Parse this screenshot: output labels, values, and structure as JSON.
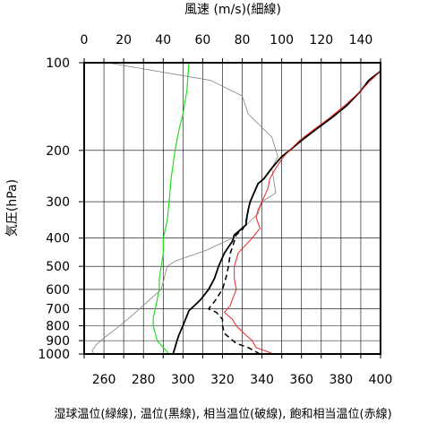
{
  "chart_data": {
    "type": "line",
    "title": "",
    "top_axis_label": "風速 (m/s)(細線)",
    "ylabel": "気圧(hPa)",
    "xlabel": "湿球温位(緑線), 温位(黒線), 相当温位(破線), 飽和相当温位(赤線)",
    "xlim": [
      250,
      400
    ],
    "x2lim": [
      0,
      150
    ],
    "ylim": [
      1000,
      100
    ],
    "y_scale": "log",
    "grid": true,
    "x_ticks": [
      260,
      280,
      300,
      320,
      340,
      360,
      380,
      400
    ],
    "x2_ticks": [
      0,
      20,
      40,
      60,
      80,
      100,
      120,
      140
    ],
    "y_ticks": [
      100,
      200,
      300,
      400,
      500,
      600,
      700,
      800,
      900,
      1000
    ],
    "x_tick_labels": [
      "260",
      "280",
      "300",
      "320",
      "340",
      "360",
      "380",
      "400"
    ],
    "x2_tick_labels": [
      "0",
      "20",
      "40",
      "60",
      "80",
      "100",
      "120",
      "140"
    ],
    "y_tick_labels": [
      "100",
      "200",
      "300",
      "400",
      "500",
      "600",
      "700",
      "800",
      "900",
      "1000"
    ],
    "series": [
      {
        "key": "wind_speed",
        "axis": "top",
        "color": "#808080",
        "dash": "solid",
        "width": 0.8,
        "points": [
          [
            5,
            1000
          ],
          [
            4,
            975
          ],
          [
            6,
            930
          ],
          [
            10,
            880
          ],
          [
            16,
            820
          ],
          [
            22,
            760
          ],
          [
            28,
            700
          ],
          [
            39,
            600
          ],
          [
            42,
            500
          ],
          [
            46,
            480
          ],
          [
            62,
            440
          ],
          [
            75,
            400
          ],
          [
            88,
            330
          ],
          [
            90,
            300
          ],
          [
            97,
            280
          ],
          [
            95,
            230
          ],
          [
            98,
            210
          ],
          [
            95,
            180
          ],
          [
            83,
            150
          ],
          [
            80,
            130
          ],
          [
            64,
            115
          ],
          [
            12,
            100
          ]
        ]
      },
      {
        "key": "wet_bulb_potential_temperature",
        "axis": "bottom",
        "color": "#22dd22",
        "dash": "solid",
        "width": 1.2,
        "points": [
          [
            293,
            1000
          ],
          [
            290,
            950
          ],
          [
            287,
            900
          ],
          [
            286,
            850
          ],
          [
            285,
            800
          ],
          [
            285,
            750
          ],
          [
            286,
            700
          ],
          [
            287,
            650
          ],
          [
            288,
            600
          ],
          [
            288,
            550
          ],
          [
            289,
            500
          ],
          [
            290,
            450
          ],
          [
            290,
            400
          ],
          [
            292,
            350
          ],
          [
            293,
            300
          ],
          [
            294,
            250
          ],
          [
            296,
            200
          ],
          [
            298,
            170
          ],
          [
            300,
            150
          ],
          [
            302,
            125
          ],
          [
            303,
            100
          ]
        ]
      },
      {
        "key": "potential_temperature",
        "axis": "bottom",
        "color": "#000000",
        "dash": "solid",
        "width": 1.8,
        "points": [
          [
            295,
            1000
          ],
          [
            296,
            950
          ],
          [
            297,
            900
          ],
          [
            298,
            860
          ],
          [
            300,
            800
          ],
          [
            302,
            740
          ],
          [
            303,
            710
          ],
          [
            306,
            680
          ],
          [
            309,
            650
          ],
          [
            313,
            600
          ],
          [
            316,
            550
          ],
          [
            318,
            500
          ],
          [
            321,
            450
          ],
          [
            325,
            410
          ],
          [
            326,
            390
          ],
          [
            328,
            380
          ],
          [
            332,
            360
          ],
          [
            332,
            350
          ],
          [
            333,
            320
          ],
          [
            334,
            300
          ],
          [
            338,
            260
          ],
          [
            341,
            250
          ],
          [
            345,
            230
          ],
          [
            350,
            210
          ],
          [
            354,
            200
          ],
          [
            360,
            185
          ],
          [
            367,
            170
          ],
          [
            375,
            155
          ],
          [
            383,
            140
          ],
          [
            390,
            125
          ],
          [
            394,
            115
          ],
          [
            400,
            107
          ]
        ]
      },
      {
        "key": "equivalent_potential_temperature",
        "axis": "bottom",
        "color": "#000000",
        "dash": "dashed",
        "width": 1.5,
        "points": [
          [
            339,
            1000
          ],
          [
            333,
            950
          ],
          [
            327,
            920
          ],
          [
            321,
            850
          ],
          [
            320,
            800
          ],
          [
            320,
            760
          ],
          [
            317,
            720
          ],
          [
            313,
            700
          ],
          [
            316,
            660
          ],
          [
            320,
            600
          ],
          [
            322,
            540
          ],
          [
            323,
            500
          ],
          [
            324,
            450
          ],
          [
            326,
            410
          ],
          [
            327,
            390
          ],
          [
            330,
            375
          ],
          [
            332,
            355
          ],
          [
            333,
            320
          ],
          [
            334,
            300
          ],
          [
            338,
            260
          ],
          [
            341,
            250
          ],
          [
            345,
            230
          ],
          [
            350,
            210
          ],
          [
            354,
            200
          ],
          [
            360,
            185
          ],
          [
            367,
            170
          ],
          [
            375,
            155
          ],
          [
            383,
            140
          ],
          [
            390,
            125
          ],
          [
            394,
            115
          ],
          [
            400,
            107
          ]
        ]
      },
      {
        "key": "saturated_equivalent_potential_temperature",
        "axis": "bottom",
        "color": "#ee2222",
        "dash": "solid",
        "width": 1,
        "points": [
          [
            346,
            1000
          ],
          [
            337,
            950
          ],
          [
            335,
            900
          ],
          [
            331,
            850
          ],
          [
            327,
            800
          ],
          [
            325,
            760
          ],
          [
            321,
            720
          ],
          [
            324,
            680
          ],
          [
            325,
            650
          ],
          [
            327,
            600
          ],
          [
            326,
            550
          ],
          [
            326,
            500
          ],
          [
            328,
            450
          ],
          [
            335,
            400
          ],
          [
            339,
            370
          ],
          [
            337,
            340
          ],
          [
            338,
            320
          ],
          [
            340,
            300
          ],
          [
            343,
            270
          ],
          [
            344,
            250
          ],
          [
            347,
            230
          ],
          [
            351,
            210
          ],
          [
            354,
            200
          ],
          [
            359,
            185
          ],
          [
            366,
            170
          ],
          [
            374,
            155
          ],
          [
            382,
            140
          ],
          [
            390,
            125
          ],
          [
            395,
            115
          ],
          [
            400,
            107
          ]
        ]
      }
    ]
  }
}
